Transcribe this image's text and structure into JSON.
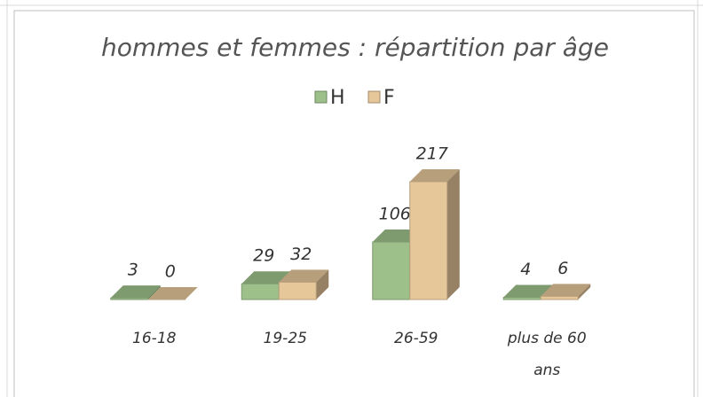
{
  "chart_data": {
    "type": "bar",
    "title": "hommes et femmes : répartition par âge",
    "categories": [
      "16-18",
      "19-25",
      "26-59",
      "plus de 60 ans"
    ],
    "series": [
      {
        "name": "H",
        "color": "#9dc08b",
        "values": [
          3,
          29,
          106,
          4
        ]
      },
      {
        "name": "F",
        "color": "#e6c79a",
        "values": [
          0,
          32,
          217,
          6
        ]
      }
    ],
    "legend": "top"
  }
}
